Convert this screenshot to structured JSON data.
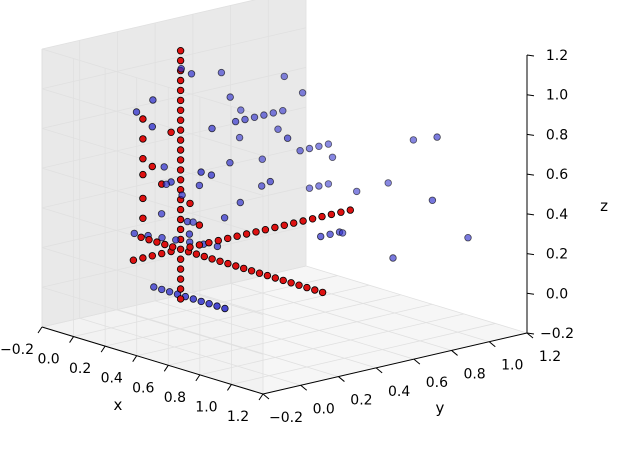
{
  "chart_data": {
    "type": "scatter",
    "projection": "3d",
    "title": "",
    "xlabel": "x",
    "ylabel": "y",
    "zlabel": "z",
    "xlim": [
      -0.2,
      1.2
    ],
    "ylim": [
      -0.2,
      1.2
    ],
    "zlim": [
      -0.2,
      1.2
    ],
    "x_ticks": [
      "−0.2",
      "0.0",
      "0.2",
      "0.4",
      "0.6",
      "0.8",
      "1.0",
      "1.2"
    ],
    "y_ticks": [
      "−0.2",
      "0.0",
      "0.2",
      "0.4",
      "0.6",
      "0.8",
      "1.0",
      "1.2"
    ],
    "z_ticks": [
      "−0.2",
      "0.0",
      "0.2",
      "0.4",
      "0.6",
      "0.8",
      "1.0",
      "1.2"
    ],
    "grid": true,
    "colors": {
      "series_a": "#3333cc",
      "series_b": "#dd1111",
      "edge": "#000000",
      "pane_left": "#f2f2f2",
      "pane_right": "#e9e9e9",
      "pane_floor": "#f6f6f6",
      "grid": "#e0e0e0"
    },
    "series": [
      {
        "color": "#3333cc",
        "points": [
          [
            0.05,
            0.08,
            0.27
          ],
          [
            0.09,
            0.12,
            0.26
          ],
          [
            0.13,
            0.16,
            0.25
          ],
          [
            0.17,
            0.2,
            0.24
          ],
          [
            0.21,
            0.24,
            0.23
          ],
          [
            0.25,
            0.28,
            0.22
          ],
          [
            0.29,
            0.32,
            0.21
          ],
          [
            0.15,
            0.1,
            0.02
          ],
          [
            0.2,
            0.1,
            0.02
          ],
          [
            0.25,
            0.1,
            0.02
          ],
          [
            0.3,
            0.1,
            0.02
          ],
          [
            0.35,
            0.1,
            0.02
          ],
          [
            0.4,
            0.1,
            0.02
          ],
          [
            0.45,
            0.1,
            0.02
          ],
          [
            0.5,
            0.1,
            0.02
          ],
          [
            0.55,
            0.1,
            0.02
          ],
          [
            0.6,
            0.1,
            0.02
          ],
          [
            0.25,
            0.45,
            0.8
          ],
          [
            0.25,
            0.5,
            0.8
          ],
          [
            0.25,
            0.55,
            0.8
          ],
          [
            0.25,
            0.6,
            0.8
          ],
          [
            0.25,
            0.65,
            0.8
          ],
          [
            0.25,
            0.7,
            0.8
          ],
          [
            0.3,
            0.75,
            0.6
          ],
          [
            0.3,
            0.8,
            0.6
          ],
          [
            0.3,
            0.85,
            0.6
          ],
          [
            0.3,
            0.9,
            0.6
          ],
          [
            0.3,
            0.8,
            0.4
          ],
          [
            0.3,
            0.85,
            0.4
          ],
          [
            0.3,
            0.9,
            0.4
          ],
          [
            0.55,
            0.65,
            0.25
          ],
          [
            0.55,
            0.7,
            0.25
          ],
          [
            0.55,
            0.75,
            0.25
          ],
          [
            0.1,
            0.05,
            0.9
          ],
          [
            0.2,
            0.05,
            0.85
          ],
          [
            0.12,
            0.12,
            0.95
          ],
          [
            0.18,
            0.22,
            1.1
          ],
          [
            0.15,
            0.3,
            1.05
          ],
          [
            0.22,
            0.35,
            0.78
          ],
          [
            0.25,
            0.42,
            0.6
          ],
          [
            0.18,
            0.48,
            0.9
          ],
          [
            0.1,
            0.5,
            1.0
          ],
          [
            0.08,
            0.62,
            0.78
          ],
          [
            0.12,
            0.58,
            0.66
          ],
          [
            0.2,
            0.75,
            0.95
          ],
          [
            0.22,
            0.7,
            0.7
          ],
          [
            0.28,
            0.78,
            0.88
          ],
          [
            0.35,
            0.88,
            0.55
          ],
          [
            0.42,
            0.95,
            0.38
          ],
          [
            0.5,
            1.05,
            0.42
          ],
          [
            0.6,
            1.1,
            0.65
          ],
          [
            0.45,
            0.85,
            0.2
          ],
          [
            0.35,
            0.55,
            0.5
          ],
          [
            0.28,
            0.45,
            0.4
          ],
          [
            0.3,
            0.35,
            0.35
          ],
          [
            0.2,
            0.3,
            0.5
          ],
          [
            0.15,
            0.25,
            0.45
          ],
          [
            0.2,
            0.15,
            0.55
          ],
          [
            0.12,
            0.18,
            0.6
          ],
          [
            0.08,
            0.2,
            0.35
          ],
          [
            0.05,
            0.25,
            0.48
          ],
          [
            0.1,
            0.35,
            0.28
          ],
          [
            0.22,
            0.22,
            0.34
          ],
          [
            0.28,
            0.18,
            0.3
          ],
          [
            0.3,
            0.28,
            0.58
          ],
          [
            0.33,
            0.2,
            0.62
          ],
          [
            0.26,
            0.58,
            0.45
          ],
          [
            0.18,
            0.65,
            0.55
          ],
          [
            0.4,
            0.6,
            0.72
          ],
          [
            0.65,
            0.95,
            0.1
          ],
          [
            0.75,
            1.1,
            0.7
          ],
          [
            0.85,
            1.18,
            0.2
          ],
          [
            0.78,
            1.05,
            0.4
          ]
        ]
      },
      {
        "color": "#dd1111",
        "points": [
          [
            0.2,
            0.2,
            -0.05
          ],
          [
            0.2,
            0.2,
            0.0
          ],
          [
            0.2,
            0.2,
            0.05
          ],
          [
            0.2,
            0.2,
            0.1
          ],
          [
            0.2,
            0.2,
            0.15
          ],
          [
            0.2,
            0.2,
            0.2
          ],
          [
            0.2,
            0.2,
            0.25
          ],
          [
            0.2,
            0.2,
            0.3
          ],
          [
            0.2,
            0.2,
            0.35
          ],
          [
            0.2,
            0.2,
            0.4
          ],
          [
            0.2,
            0.2,
            0.45
          ],
          [
            0.2,
            0.2,
            0.5
          ],
          [
            0.2,
            0.2,
            0.55
          ],
          [
            0.2,
            0.2,
            0.6
          ],
          [
            0.2,
            0.2,
            0.65
          ],
          [
            0.2,
            0.2,
            0.7
          ],
          [
            0.2,
            0.2,
            0.75
          ],
          [
            0.2,
            0.2,
            0.8
          ],
          [
            0.2,
            0.2,
            0.85
          ],
          [
            0.2,
            0.2,
            0.9
          ],
          [
            0.2,
            0.2,
            0.95
          ],
          [
            0.2,
            0.2,
            1.0
          ],
          [
            0.2,
            0.2,
            1.05
          ],
          [
            0.2,
            0.2,
            1.1
          ],
          [
            0.2,
            0.2,
            1.15
          ],
          [
            0.2,
            0.2,
            1.2
          ],
          [
            -0.05,
            0.2,
            0.2
          ],
          [
            0.0,
            0.2,
            0.2
          ],
          [
            0.05,
            0.2,
            0.2
          ],
          [
            0.1,
            0.2,
            0.2
          ],
          [
            0.15,
            0.2,
            0.2
          ],
          [
            0.25,
            0.2,
            0.2
          ],
          [
            0.3,
            0.2,
            0.2
          ],
          [
            0.35,
            0.2,
            0.2
          ],
          [
            0.4,
            0.2,
            0.2
          ],
          [
            0.45,
            0.2,
            0.2
          ],
          [
            0.5,
            0.2,
            0.2
          ],
          [
            0.55,
            0.2,
            0.2
          ],
          [
            0.6,
            0.2,
            0.2
          ],
          [
            0.65,
            0.2,
            0.2
          ],
          [
            0.7,
            0.2,
            0.2
          ],
          [
            0.75,
            0.2,
            0.2
          ],
          [
            0.8,
            0.2,
            0.2
          ],
          [
            0.85,
            0.2,
            0.2
          ],
          [
            0.9,
            0.2,
            0.2
          ],
          [
            0.95,
            0.2,
            0.2
          ],
          [
            1.0,
            0.2,
            0.2
          ],
          [
            1.05,
            0.2,
            0.2
          ],
          [
            1.1,
            0.2,
            0.2
          ],
          [
            0.2,
            -0.05,
            0.2
          ],
          [
            0.2,
            0.0,
            0.2
          ],
          [
            0.2,
            0.05,
            0.2
          ],
          [
            0.2,
            0.1,
            0.2
          ],
          [
            0.2,
            0.15,
            0.2
          ],
          [
            0.2,
            0.25,
            0.2
          ],
          [
            0.2,
            0.3,
            0.2
          ],
          [
            0.2,
            0.35,
            0.2
          ],
          [
            0.2,
            0.4,
            0.2
          ],
          [
            0.2,
            0.45,
            0.2
          ],
          [
            0.2,
            0.5,
            0.2
          ],
          [
            0.2,
            0.55,
            0.2
          ],
          [
            0.2,
            0.6,
            0.2
          ],
          [
            0.2,
            0.65,
            0.2
          ],
          [
            0.2,
            0.7,
            0.2
          ],
          [
            0.2,
            0.75,
            0.2
          ],
          [
            0.2,
            0.8,
            0.2
          ],
          [
            0.2,
            0.85,
            0.2
          ],
          [
            0.2,
            0.9,
            0.2
          ],
          [
            0.2,
            0.95,
            0.2
          ],
          [
            0.2,
            1.0,
            0.2
          ],
          [
            0.2,
            1.05,
            0.2
          ],
          [
            0.2,
            1.1,
            0.2
          ],
          [
            0.2,
            0.0,
            0.4
          ],
          [
            0.2,
            0.0,
            0.5
          ],
          [
            0.2,
            0.0,
            0.62
          ],
          [
            0.2,
            0.0,
            0.7
          ],
          [
            0.2,
            0.0,
            0.8
          ],
          [
            0.2,
            0.0,
            0.9
          ],
          [
            0.2,
            0.05,
            0.65
          ],
          [
            0.2,
            0.1,
            0.55
          ],
          [
            0.2,
            0.15,
            0.8
          ],
          [
            0.2,
            0.25,
            0.42
          ],
          [
            0.2,
            0.3,
            0.3
          ]
        ]
      }
    ]
  }
}
